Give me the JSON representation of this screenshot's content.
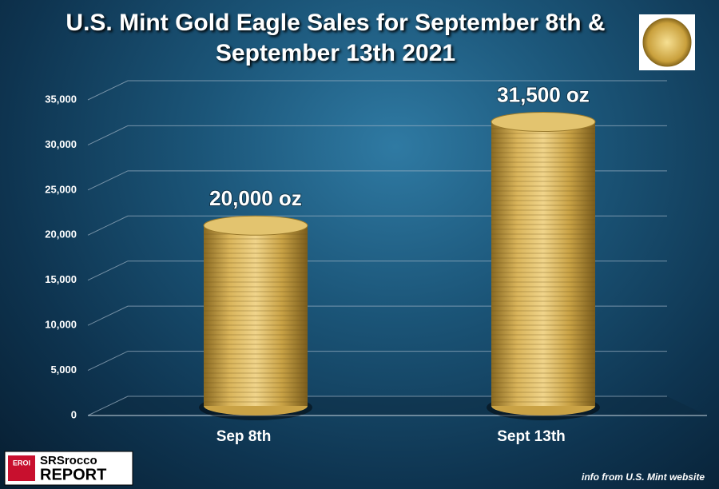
{
  "chart_data": {
    "type": "bar",
    "title": "U.S. Mint Gold Eagle Sales for September 8th & September 13th 2021",
    "categories": [
      "Sep 8th",
      "Sept 13th"
    ],
    "values": [
      20000,
      31500
    ],
    "value_labels": [
      "20,000 oz",
      "31,500 oz"
    ],
    "color": "#c9a245",
    "ylim": [
      0,
      35000
    ],
    "yticks": [
      0,
      {
        "value": 5000,
        "label": "5,000"
      },
      {
        "value": 10000,
        "label": "10,000"
      },
      {
        "value": 15000,
        "label": "15,000"
      },
      {
        "value": 20000,
        "label": "20,000"
      },
      {
        "value": 25000,
        "label": "25,000"
      },
      {
        "value": 30000,
        "label": "30,000"
      },
      {
        "value": 35000,
        "label": "35,000"
      }
    ],
    "grid": true,
    "source": "info from U.S. Mint website",
    "logo": [
      "EROI",
      "SRSrocco",
      "REPORT"
    ]
  }
}
